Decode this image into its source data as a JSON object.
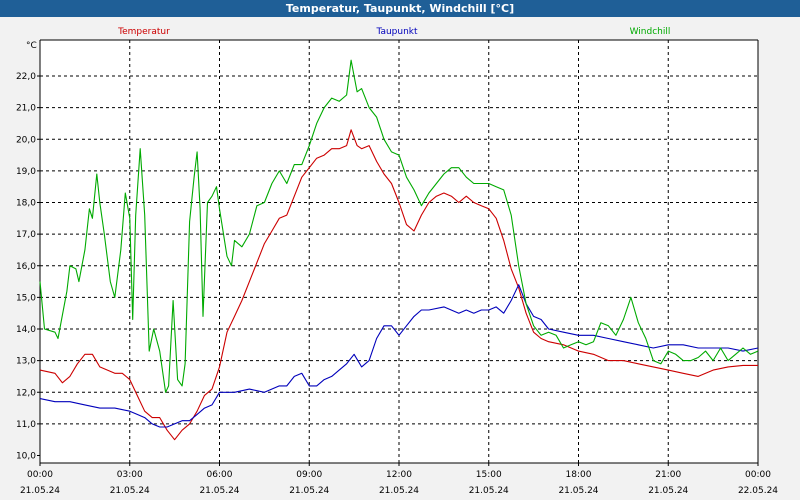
{
  "window": {
    "title": "Temperatur, Taupunkt, Windchill [°C]"
  },
  "chart_data": {
    "type": "line",
    "title": "Temperatur, Taupunkt, Windchill [°C]",
    "ylabel": "°C",
    "xlabel": "",
    "ylim": [
      9.9,
      23.0
    ],
    "xlim_hours": [
      0,
      24
    ],
    "grid": true,
    "legend_placement": "top",
    "y_ticks": [
      "10,0",
      "11,0",
      "12,0",
      "13,0",
      "14,0",
      "15,0",
      "16,0",
      "17,0",
      "18,0",
      "19,0",
      "20,0",
      "21,0",
      "22,0"
    ],
    "x_ticks": [
      {
        "time": "00:00",
        "date": "21.05.24"
      },
      {
        "time": "03:00",
        "date": "21.05.24"
      },
      {
        "time": "06:00",
        "date": "21.05.24"
      },
      {
        "time": "09:00",
        "date": "21.05.24"
      },
      {
        "time": "12:00",
        "date": "21.05.24"
      },
      {
        "time": "15:00",
        "date": "21.05.24"
      },
      {
        "time": "18:00",
        "date": "21.05.24"
      },
      {
        "time": "21:00",
        "date": "21.05.24"
      },
      {
        "time": "00:00",
        "date": "22.05.24"
      }
    ],
    "series": [
      {
        "name": "Temperatur",
        "color": "#cc0000",
        "points": [
          [
            0,
            12.7
          ],
          [
            0.5,
            12.6
          ],
          [
            0.75,
            12.3
          ],
          [
            1,
            12.5
          ],
          [
            1.25,
            12.9
          ],
          [
            1.5,
            13.2
          ],
          [
            1.75,
            13.2
          ],
          [
            2,
            12.8
          ],
          [
            2.5,
            12.6
          ],
          [
            2.75,
            12.6
          ],
          [
            3,
            12.4
          ],
          [
            3.25,
            11.9
          ],
          [
            3.5,
            11.4
          ],
          [
            3.75,
            11.2
          ],
          [
            4,
            11.2
          ],
          [
            4.25,
            10.8
          ],
          [
            4.5,
            10.5
          ],
          [
            4.75,
            10.8
          ],
          [
            5,
            11.0
          ],
          [
            5.25,
            11.4
          ],
          [
            5.5,
            11.9
          ],
          [
            5.75,
            12.1
          ],
          [
            6,
            12.8
          ],
          [
            6.25,
            13.9
          ],
          [
            6.5,
            14.4
          ],
          [
            6.75,
            14.9
          ],
          [
            7,
            15.5
          ],
          [
            7.25,
            16.1
          ],
          [
            7.5,
            16.7
          ],
          [
            7.75,
            17.1
          ],
          [
            8,
            17.5
          ],
          [
            8.25,
            17.6
          ],
          [
            8.5,
            18.2
          ],
          [
            8.75,
            18.8
          ],
          [
            9,
            19.1
          ],
          [
            9.25,
            19.4
          ],
          [
            9.5,
            19.5
          ],
          [
            9.75,
            19.7
          ],
          [
            10,
            19.7
          ],
          [
            10.25,
            19.8
          ],
          [
            10.4,
            20.3
          ],
          [
            10.6,
            19.8
          ],
          [
            10.75,
            19.7
          ],
          [
            11,
            19.8
          ],
          [
            11.25,
            19.3
          ],
          [
            11.5,
            18.9
          ],
          [
            11.75,
            18.6
          ],
          [
            12,
            18.0
          ],
          [
            12.25,
            17.3
          ],
          [
            12.5,
            17.1
          ],
          [
            12.75,
            17.6
          ],
          [
            13,
            18.0
          ],
          [
            13.25,
            18.2
          ],
          [
            13.5,
            18.3
          ],
          [
            13.75,
            18.2
          ],
          [
            14,
            18.0
          ],
          [
            14.25,
            18.2
          ],
          [
            14.5,
            18.0
          ],
          [
            14.75,
            17.9
          ],
          [
            15,
            17.8
          ],
          [
            15.25,
            17.5
          ],
          [
            15.5,
            16.8
          ],
          [
            15.75,
            15.9
          ],
          [
            16,
            15.3
          ],
          [
            16.25,
            14.5
          ],
          [
            16.5,
            13.9
          ],
          [
            16.75,
            13.7
          ],
          [
            17,
            13.6
          ],
          [
            17.5,
            13.5
          ],
          [
            18,
            13.3
          ],
          [
            18.5,
            13.2
          ],
          [
            19,
            13.0
          ],
          [
            19.5,
            13.0
          ],
          [
            20,
            12.9
          ],
          [
            20.5,
            12.8
          ],
          [
            21,
            12.7
          ],
          [
            21.5,
            12.6
          ],
          [
            22,
            12.5
          ],
          [
            22.5,
            12.7
          ],
          [
            23,
            12.8
          ],
          [
            23.5,
            12.85
          ],
          [
            24,
            12.85
          ]
        ]
      },
      {
        "name": "Taupunkt",
        "color": "#0000bb",
        "points": [
          [
            0,
            11.8
          ],
          [
            0.5,
            11.7
          ],
          [
            1,
            11.7
          ],
          [
            1.5,
            11.6
          ],
          [
            2,
            11.5
          ],
          [
            2.5,
            11.5
          ],
          [
            3,
            11.4
          ],
          [
            3.25,
            11.3
          ],
          [
            3.5,
            11.2
          ],
          [
            3.75,
            11.0
          ],
          [
            4,
            10.9
          ],
          [
            4.25,
            10.9
          ],
          [
            4.5,
            11.0
          ],
          [
            4.75,
            11.1
          ],
          [
            5,
            11.1
          ],
          [
            5.25,
            11.3
          ],
          [
            5.5,
            11.5
          ],
          [
            5.75,
            11.6
          ],
          [
            6,
            12.0
          ],
          [
            6.5,
            12.0
          ],
          [
            7,
            12.1
          ],
          [
            7.5,
            12.0
          ],
          [
            8,
            12.2
          ],
          [
            8.25,
            12.2
          ],
          [
            8.5,
            12.5
          ],
          [
            8.75,
            12.6
          ],
          [
            9,
            12.2
          ],
          [
            9.25,
            12.2
          ],
          [
            9.5,
            12.4
          ],
          [
            9.75,
            12.5
          ],
          [
            10,
            12.7
          ],
          [
            10.25,
            12.9
          ],
          [
            10.5,
            13.2
          ],
          [
            10.75,
            12.8
          ],
          [
            11,
            13.0
          ],
          [
            11.25,
            13.7
          ],
          [
            11.5,
            14.1
          ],
          [
            11.75,
            14.1
          ],
          [
            12,
            13.8
          ],
          [
            12.25,
            14.1
          ],
          [
            12.5,
            14.4
          ],
          [
            12.75,
            14.6
          ],
          [
            13,
            14.6
          ],
          [
            13.5,
            14.7
          ],
          [
            14,
            14.5
          ],
          [
            14.25,
            14.6
          ],
          [
            14.5,
            14.5
          ],
          [
            14.75,
            14.6
          ],
          [
            15,
            14.6
          ],
          [
            15.25,
            14.7
          ],
          [
            15.5,
            14.5
          ],
          [
            15.75,
            14.9
          ],
          [
            16,
            15.4
          ],
          [
            16.25,
            14.8
          ],
          [
            16.5,
            14.4
          ],
          [
            16.75,
            14.3
          ],
          [
            17,
            14.0
          ],
          [
            17.5,
            13.9
          ],
          [
            18,
            13.8
          ],
          [
            18.5,
            13.8
          ],
          [
            19,
            13.7
          ],
          [
            19.5,
            13.6
          ],
          [
            20,
            13.5
          ],
          [
            20.5,
            13.4
          ],
          [
            21,
            13.5
          ],
          [
            21.5,
            13.5
          ],
          [
            22,
            13.4
          ],
          [
            22.5,
            13.4
          ],
          [
            23,
            13.4
          ],
          [
            23.5,
            13.3
          ],
          [
            24,
            13.4
          ]
        ]
      },
      {
        "name": "Windchill",
        "color": "#00aa00",
        "points": [
          [
            0,
            15.5
          ],
          [
            0.15,
            14.0
          ],
          [
            0.5,
            13.9
          ],
          [
            0.6,
            13.7
          ],
          [
            0.9,
            15.2
          ],
          [
            1.0,
            16.0
          ],
          [
            1.2,
            15.9
          ],
          [
            1.3,
            15.5
          ],
          [
            1.5,
            16.5
          ],
          [
            1.65,
            17.8
          ],
          [
            1.75,
            17.5
          ],
          [
            1.9,
            18.9
          ],
          [
            2.0,
            18.0
          ],
          [
            2.15,
            17.0
          ],
          [
            2.35,
            15.5
          ],
          [
            2.5,
            15.0
          ],
          [
            2.7,
            16.5
          ],
          [
            2.85,
            18.3
          ],
          [
            3.0,
            17.5
          ],
          [
            3.1,
            14.3
          ],
          [
            3.2,
            17.6
          ],
          [
            3.35,
            19.7
          ],
          [
            3.5,
            17.6
          ],
          [
            3.65,
            13.3
          ],
          [
            3.8,
            14.0
          ],
          [
            4.0,
            13.3
          ],
          [
            4.2,
            12.0
          ],
          [
            4.3,
            12.2
          ],
          [
            4.45,
            14.9
          ],
          [
            4.6,
            12.4
          ],
          [
            4.75,
            12.2
          ],
          [
            4.85,
            12.9
          ],
          [
            5.0,
            17.4
          ],
          [
            5.15,
            18.8
          ],
          [
            5.25,
            19.6
          ],
          [
            5.35,
            17.8
          ],
          [
            5.45,
            14.4
          ],
          [
            5.6,
            18.0
          ],
          [
            5.75,
            18.2
          ],
          [
            5.9,
            18.5
          ],
          [
            6.0,
            17.8
          ],
          [
            6.25,
            16.3
          ],
          [
            6.4,
            16.0
          ],
          [
            6.5,
            16.8
          ],
          [
            6.75,
            16.6
          ],
          [
            7.0,
            17.0
          ],
          [
            7.25,
            17.9
          ],
          [
            7.5,
            18.0
          ],
          [
            7.75,
            18.6
          ],
          [
            8.0,
            19.0
          ],
          [
            8.25,
            18.6
          ],
          [
            8.5,
            19.2
          ],
          [
            8.75,
            19.2
          ],
          [
            9.0,
            19.8
          ],
          [
            9.25,
            20.5
          ],
          [
            9.5,
            21.0
          ],
          [
            9.75,
            21.3
          ],
          [
            10.0,
            21.2
          ],
          [
            10.25,
            21.4
          ],
          [
            10.4,
            22.5
          ],
          [
            10.6,
            21.5
          ],
          [
            10.75,
            21.6
          ],
          [
            11.0,
            21.0
          ],
          [
            11.25,
            20.7
          ],
          [
            11.5,
            20.0
          ],
          [
            11.75,
            19.6
          ],
          [
            12.0,
            19.5
          ],
          [
            12.25,
            18.8
          ],
          [
            12.5,
            18.4
          ],
          [
            12.75,
            17.9
          ],
          [
            13.0,
            18.3
          ],
          [
            13.25,
            18.6
          ],
          [
            13.5,
            18.9
          ],
          [
            13.75,
            19.1
          ],
          [
            14.0,
            19.1
          ],
          [
            14.25,
            18.8
          ],
          [
            14.5,
            18.6
          ],
          [
            14.75,
            18.6
          ],
          [
            15.0,
            18.6
          ],
          [
            15.25,
            18.5
          ],
          [
            15.5,
            18.4
          ],
          [
            15.75,
            17.6
          ],
          [
            16.0,
            16.0
          ],
          [
            16.25,
            14.8
          ],
          [
            16.5,
            14.1
          ],
          [
            16.75,
            13.8
          ],
          [
            17.0,
            13.9
          ],
          [
            17.25,
            13.8
          ],
          [
            17.5,
            13.4
          ],
          [
            17.75,
            13.5
          ],
          [
            18.0,
            13.6
          ],
          [
            18.25,
            13.5
          ],
          [
            18.5,
            13.6
          ],
          [
            18.75,
            14.2
          ],
          [
            19.0,
            14.1
          ],
          [
            19.25,
            13.8
          ],
          [
            19.5,
            14.3
          ],
          [
            19.75,
            15.0
          ],
          [
            20.0,
            14.2
          ],
          [
            20.25,
            13.7
          ],
          [
            20.5,
            13.0
          ],
          [
            20.75,
            12.9
          ],
          [
            21.0,
            13.3
          ],
          [
            21.25,
            13.2
          ],
          [
            21.5,
            13.0
          ],
          [
            21.75,
            13.0
          ],
          [
            22.0,
            13.1
          ],
          [
            22.25,
            13.3
          ],
          [
            22.5,
            13.0
          ],
          [
            22.75,
            13.4
          ],
          [
            23.0,
            13.0
          ],
          [
            23.25,
            13.2
          ],
          [
            23.5,
            13.4
          ],
          [
            23.75,
            13.2
          ],
          [
            24.0,
            13.3
          ]
        ]
      }
    ]
  }
}
